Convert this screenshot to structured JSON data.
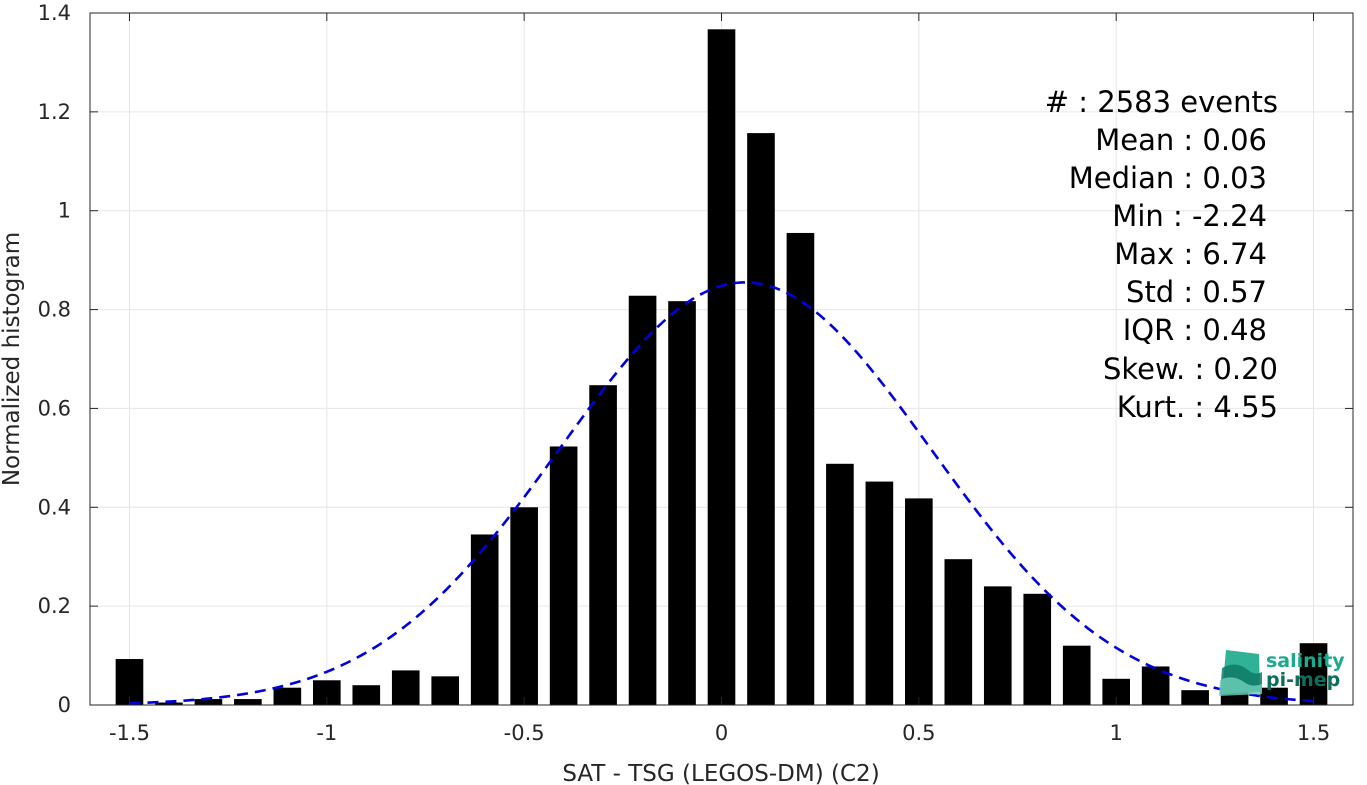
{
  "chart_data": {
    "type": "bar",
    "xlabel": "SAT - TSG (LEGOS-DM) (C2)",
    "ylabel": "Normalized histogram",
    "xlim": [
      -1.6,
      1.6
    ],
    "ylim": [
      0,
      1.4
    ],
    "xticks": [
      -1.5,
      -1,
      -0.5,
      0,
      0.5,
      1,
      1.5
    ],
    "xtick_labels": [
      "-1.5",
      "-1",
      "-0.5",
      "0",
      "0.5",
      "1",
      "1.5"
    ],
    "yticks": [
      0,
      0.2,
      0.4,
      0.6,
      0.8,
      1,
      1.2,
      1.4
    ],
    "ytick_labels": [
      "0",
      "0.2",
      "0.4",
      "0.6",
      "0.8",
      "1",
      "1.2",
      "1.4"
    ],
    "grid": true,
    "bar_color": "#000000",
    "bins": [
      {
        "x": -1.5,
        "value": 0.093
      },
      {
        "x": -1.4,
        "value": 0.005
      },
      {
        "x": -1.3,
        "value": 0.012
      },
      {
        "x": -1.2,
        "value": 0.012
      },
      {
        "x": -1.1,
        "value": 0.035
      },
      {
        "x": -1.0,
        "value": 0.05
      },
      {
        "x": -0.9,
        "value": 0.04
      },
      {
        "x": -0.8,
        "value": 0.07
      },
      {
        "x": -0.7,
        "value": 0.058
      },
      {
        "x": -0.6,
        "value": 0.345
      },
      {
        "x": -0.5,
        "value": 0.4
      },
      {
        "x": -0.4,
        "value": 0.523
      },
      {
        "x": -0.3,
        "value": 0.647
      },
      {
        "x": -0.2,
        "value": 0.828
      },
      {
        "x": -0.1,
        "value": 0.817
      },
      {
        "x": 0.0,
        "value": 1.367
      },
      {
        "x": 0.1,
        "value": 1.157
      },
      {
        "x": 0.2,
        "value": 0.955
      },
      {
        "x": 0.3,
        "value": 0.488
      },
      {
        "x": 0.4,
        "value": 0.452
      },
      {
        "x": 0.5,
        "value": 0.418
      },
      {
        "x": 0.6,
        "value": 0.295
      },
      {
        "x": 0.7,
        "value": 0.24
      },
      {
        "x": 0.8,
        "value": 0.225
      },
      {
        "x": 0.9,
        "value": 0.12
      },
      {
        "x": 1.0,
        "value": 0.053
      },
      {
        "x": 1.1,
        "value": 0.078
      },
      {
        "x": 1.2,
        "value": 0.03
      },
      {
        "x": 1.3,
        "value": 0.03
      },
      {
        "x": 1.4,
        "value": 0.035
      },
      {
        "x": 1.5,
        "value": 0.125
      }
    ],
    "fit_curve": {
      "style": "dashed",
      "color": "#0000dd",
      "mean": 0.06,
      "std": 0.47,
      "peak": 0.855,
      "x_range": [
        -1.5,
        1.5
      ]
    },
    "stats_labels": [
      "#  : 2583 events",
      "Mean : 0.06",
      "Median : 0.03",
      "Min : -2.24",
      "Max : 6.74",
      "Std : 0.57",
      "IQR : 0.48",
      "Skew. : 0.20",
      "Kurt. : 4.55"
    ],
    "logo": {
      "line1": "salinity",
      "line2": "pi-mep",
      "color": "#1aaa8c"
    }
  }
}
